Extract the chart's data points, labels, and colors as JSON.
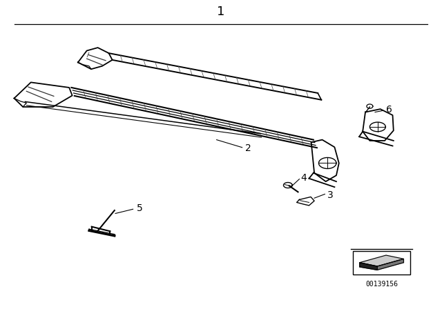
{
  "bg_color": "#ffffff",
  "title": "1",
  "part_number": "00139156",
  "line_color": "#000000",
  "text_color": "#000000",
  "label_fontsize": 10,
  "title_fontsize": 13
}
